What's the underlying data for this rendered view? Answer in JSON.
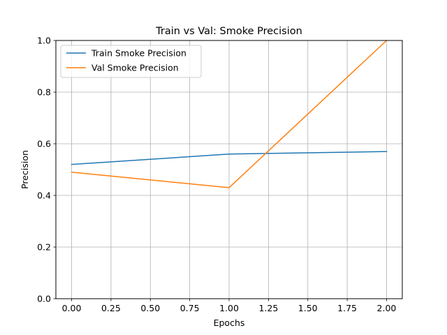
{
  "chart_data": {
    "type": "line",
    "title": "Train vs Val: Smoke Precision",
    "xlabel": "Epochs",
    "ylabel": "Precision",
    "x": [
      0,
      1,
      2
    ],
    "xlim": [
      -0.1,
      2.1
    ],
    "ylim": [
      0.0,
      1.0
    ],
    "xticks": [
      "0.00",
      "0.25",
      "0.50",
      "0.75",
      "1.00",
      "1.25",
      "1.50",
      "1.75",
      "2.00"
    ],
    "yticks": [
      "0.0",
      "0.2",
      "0.4",
      "0.6",
      "0.8",
      "1.0"
    ],
    "grid": true,
    "legend_position": "top-left",
    "series": [
      {
        "name": "Train Smoke Precision",
        "color": "#1f77b4",
        "values": [
          0.52,
          0.56,
          0.57
        ]
      },
      {
        "name": "Val Smoke Precision",
        "color": "#ff7f0e",
        "values": [
          0.49,
          0.43,
          1.0
        ]
      }
    ]
  }
}
